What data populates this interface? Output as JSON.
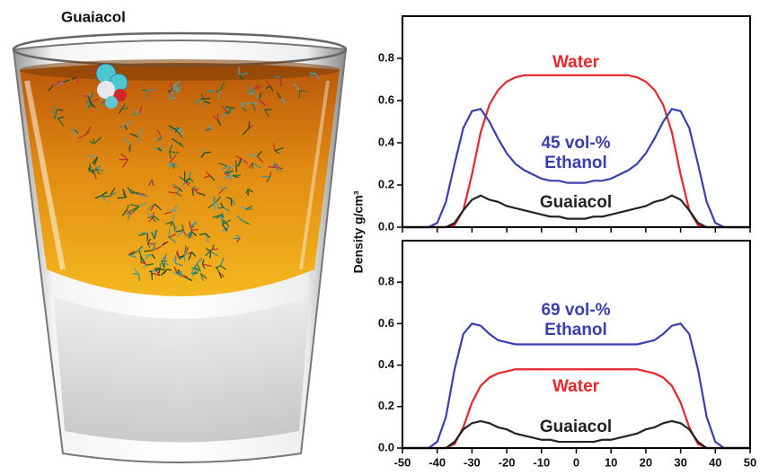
{
  "illustration": {
    "label": "Guaiacol"
  },
  "chart_data": [
    {
      "type": "line",
      "ylabel": "Density g/cm³",
      "x": [
        -50,
        -47.5,
        -45,
        -42.5,
        -40,
        -37.5,
        -35,
        -32.5,
        -30,
        -27.5,
        -25,
        -22.5,
        -20,
        -17.5,
        -15,
        -12.5,
        -10,
        -7.5,
        -5,
        -2.5,
        0,
        2.5,
        5,
        7.5,
        10,
        12.5,
        15,
        17.5,
        20,
        22.5,
        25,
        27.5,
        30,
        32.5,
        35,
        37.5,
        40,
        42.5,
        45,
        47.5,
        50
      ],
      "series": [
        {
          "name": "Water",
          "color": "#e8262b",
          "values": [
            0,
            0,
            0,
            0,
            0,
            0,
            0.01,
            0.08,
            0.25,
            0.45,
            0.58,
            0.65,
            0.69,
            0.71,
            0.72,
            0.72,
            0.72,
            0.72,
            0.72,
            0.72,
            0.72,
            0.72,
            0.72,
            0.72,
            0.72,
            0.72,
            0.72,
            0.71,
            0.69,
            0.65,
            0.58,
            0.45,
            0.25,
            0.08,
            0.01,
            0,
            0,
            0,
            0,
            0,
            0
          ]
        },
        {
          "name": "Ethanol",
          "color": "#3a3fb0",
          "values": [
            0,
            0,
            0,
            0,
            0.02,
            0.12,
            0.3,
            0.47,
            0.55,
            0.56,
            0.5,
            0.42,
            0.35,
            0.3,
            0.27,
            0.25,
            0.23,
            0.22,
            0.22,
            0.21,
            0.21,
            0.21,
            0.22,
            0.22,
            0.23,
            0.25,
            0.27,
            0.3,
            0.35,
            0.42,
            0.5,
            0.56,
            0.55,
            0.47,
            0.3,
            0.12,
            0.02,
            0,
            0,
            0,
            0
          ]
        },
        {
          "name": "Guaiacol",
          "color": "#222222",
          "values": [
            0,
            0,
            0,
            0,
            0,
            0,
            0.02,
            0.08,
            0.13,
            0.15,
            0.13,
            0.12,
            0.1,
            0.09,
            0.08,
            0.07,
            0.06,
            0.05,
            0.05,
            0.04,
            0.04,
            0.04,
            0.05,
            0.05,
            0.06,
            0.07,
            0.08,
            0.09,
            0.1,
            0.12,
            0.13,
            0.15,
            0.13,
            0.08,
            0.02,
            0,
            0,
            0,
            0,
            0,
            0
          ]
        }
      ],
      "annotations": [
        "Water",
        "45 vol-%",
        "Ethanol",
        "Guaiacol"
      ],
      "xlim": [
        -50,
        50
      ],
      "xticks": [
        -50,
        -40,
        -30,
        -20,
        -10,
        0,
        10,
        20,
        30,
        40,
        50
      ],
      "ylim": [
        0,
        1.0
      ],
      "yticks": [
        {
          "value": 0,
          "label": "0.0"
        },
        0.2,
        0.4,
        0.6,
        0.8
      ]
    },
    {
      "type": "line",
      "x": [
        -50,
        -47.5,
        -45,
        -42.5,
        -40,
        -37.5,
        -35,
        -32.5,
        -30,
        -27.5,
        -25,
        -22.5,
        -20,
        -17.5,
        -15,
        -12.5,
        -10,
        -7.5,
        -5,
        -2.5,
        0,
        2.5,
        5,
        7.5,
        10,
        12.5,
        15,
        17.5,
        20,
        22.5,
        25,
        27.5,
        30,
        32.5,
        35,
        37.5,
        40,
        42.5,
        45,
        47.5,
        50
      ],
      "series": [
        {
          "name": "Ethanol",
          "color": "#3a3fb0",
          "values": [
            0,
            0,
            0,
            0,
            0.03,
            0.15,
            0.38,
            0.55,
            0.6,
            0.59,
            0.55,
            0.52,
            0.51,
            0.5,
            0.5,
            0.5,
            0.5,
            0.5,
            0.5,
            0.5,
            0.5,
            0.5,
            0.5,
            0.5,
            0.5,
            0.5,
            0.5,
            0.5,
            0.51,
            0.52,
            0.55,
            0.59,
            0.6,
            0.55,
            0.38,
            0.15,
            0.03,
            0,
            0,
            0,
            0
          ]
        },
        {
          "name": "Water",
          "color": "#e8262b",
          "values": [
            0,
            0,
            0,
            0,
            0,
            0,
            0.02,
            0.1,
            0.22,
            0.3,
            0.34,
            0.36,
            0.37,
            0.38,
            0.38,
            0.38,
            0.38,
            0.38,
            0.38,
            0.38,
            0.38,
            0.38,
            0.38,
            0.38,
            0.38,
            0.38,
            0.38,
            0.38,
            0.37,
            0.36,
            0.34,
            0.3,
            0.22,
            0.1,
            0.02,
            0,
            0,
            0,
            0,
            0,
            0
          ]
        },
        {
          "name": "Guaiacol",
          "color": "#222222",
          "values": [
            0,
            0,
            0,
            0,
            0,
            0,
            0.03,
            0.09,
            0.12,
            0.13,
            0.12,
            0.1,
            0.09,
            0.07,
            0.06,
            0.05,
            0.04,
            0.04,
            0.03,
            0.03,
            0.03,
            0.03,
            0.03,
            0.04,
            0.04,
            0.05,
            0.06,
            0.07,
            0.09,
            0.1,
            0.12,
            0.13,
            0.12,
            0.09,
            0.03,
            0,
            0,
            0,
            0,
            0,
            0
          ]
        }
      ],
      "annotations": [
        "69 vol-%",
        "Ethanol",
        "Water",
        "Guaiacol"
      ],
      "xlim": [
        -50,
        50
      ],
      "xticks": [
        -50,
        -40,
        -30,
        -20,
        -10,
        0,
        10,
        20,
        30,
        40,
        50
      ],
      "ylim": [
        0,
        1.0
      ],
      "yticks": [
        {
          "value": 0,
          "label": "0.0"
        },
        0.2,
        0.4,
        0.6,
        0.8
      ]
    }
  ]
}
